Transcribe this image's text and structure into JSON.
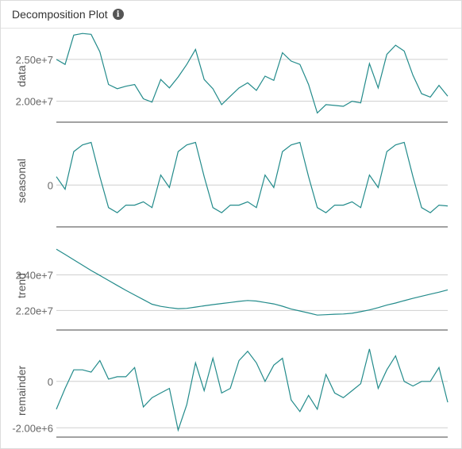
{
  "header": {
    "title": "Decomposition Plot",
    "info_icon": "info-icon"
  },
  "colors": {
    "line": "#238b8b",
    "grid": "#cfcfcf",
    "axis": "#444444",
    "tick_text": "#666666"
  },
  "chart_data": [
    {
      "type": "line",
      "ylabel": "data",
      "yticks": [
        20000000,
        25000000
      ],
      "yticklabels": [
        "2.00e+7",
        "2.50e+7"
      ],
      "ylim": [
        17500000,
        28500000
      ],
      "values": [
        25000000,
        24400000,
        27900000,
        28100000,
        28000000,
        25900000,
        22000000,
        21500000,
        21800000,
        22000000,
        20300000,
        19900000,
        22600000,
        21600000,
        22900000,
        24400000,
        26200000,
        22600000,
        21500000,
        19600000,
        20600000,
        21600000,
        22200000,
        21300000,
        23000000,
        22500000,
        25800000,
        24800000,
        24400000,
        22000000,
        18600000,
        19600000,
        19500000,
        19400000,
        20000000,
        19800000,
        24500000,
        21600000,
        25600000,
        26700000,
        26000000,
        23100000,
        20900000,
        20500000,
        21900000,
        20600000
      ]
    },
    {
      "type": "line",
      "ylabel": "seasonal",
      "yticks": [
        0
      ],
      "yticklabels": [
        "0"
      ],
      "ylim": [
        -5000000,
        6000000
      ],
      "values": [
        1000000,
        -500000,
        4000000,
        4800000,
        5100000,
        1000000,
        -2700000,
        -3300000,
        -2400000,
        -2400000,
        -2000000,
        -2700000,
        1200000,
        -300000,
        4000000,
        4800000,
        5100000,
        1000000,
        -2700000,
        -3300000,
        -2400000,
        -2400000,
        -2000000,
        -2700000,
        1200000,
        -300000,
        4000000,
        4800000,
        5100000,
        1000000,
        -2700000,
        -3300000,
        -2400000,
        -2400000,
        -2000000,
        -2700000,
        1200000,
        -300000,
        4000000,
        4800000,
        5100000,
        1000000,
        -2700000,
        -3300000,
        -2400000,
        -2500000
      ]
    },
    {
      "type": "line",
      "ylabel": "trend",
      "yticks": [
        22000000,
        24000000
      ],
      "yticklabels": [
        "2.20e+7",
        "2.40e+7"
      ],
      "ylim": [
        20900000,
        25900000
      ],
      "values": [
        25450000,
        25150000,
        24850000,
        24550000,
        24250000,
        23970000,
        23690000,
        23410000,
        23130000,
        22870000,
        22610000,
        22350000,
        22230000,
        22160000,
        22100000,
        22120000,
        22190000,
        22260000,
        22330000,
        22390000,
        22450000,
        22510000,
        22560000,
        22530000,
        22450000,
        22370000,
        22240000,
        22080000,
        21970000,
        21860000,
        21740000,
        21760000,
        21790000,
        21800000,
        21840000,
        21930000,
        22030000,
        22160000,
        22300000,
        22420000,
        22550000,
        22680000,
        22800000,
        22920000,
        23030000,
        23160000
      ]
    },
    {
      "type": "line",
      "ylabel": "remainder",
      "yticks": [
        0,
        -2000000
      ],
      "yticklabels": [
        "0",
        "-2.00e+6"
      ],
      "ylim": [
        -2400000,
        1600000
      ],
      "values": [
        -1200000,
        -300000,
        500000,
        500000,
        400000,
        900000,
        100000,
        200000,
        200000,
        600000,
        -1100000,
        -700000,
        -500000,
        -300000,
        -2100000,
        -1000000,
        800000,
        -400000,
        1000000,
        -500000,
        -300000,
        900000,
        1300000,
        800000,
        0,
        700000,
        1000000,
        -800000,
        -1300000,
        -600000,
        -1200000,
        300000,
        -500000,
        -700000,
        -400000,
        -100000,
        1400000,
        -300000,
        500000,
        1100000,
        0,
        -200000,
        0,
        0,
        600000,
        -900000
      ]
    }
  ]
}
